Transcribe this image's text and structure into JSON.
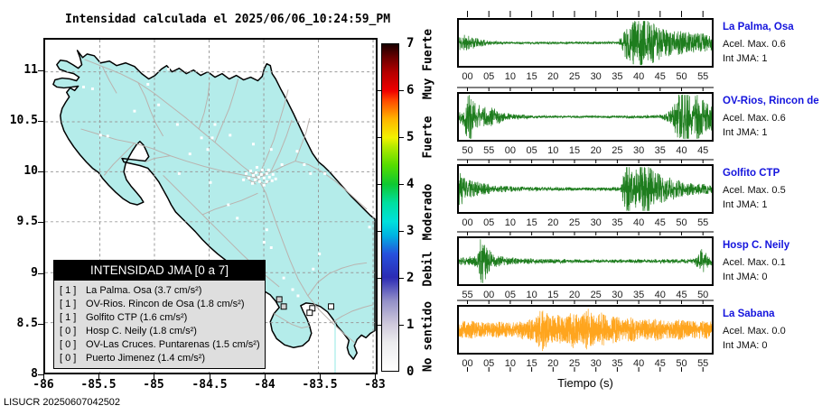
{
  "title": "Intensidad calculada el 2025/06/06_10:24:59_PM",
  "footer": "LISUCR 20250607042502",
  "map": {
    "land_color": "#b4ecea",
    "road_color": "#bab2ae",
    "river_color": "#b6f0ee",
    "x_ticks": [
      "-86",
      "-85.5",
      "-85",
      "-84.5",
      "-84",
      "-83.5",
      "-83"
    ],
    "y_ticks": [
      "8",
      "8.5",
      "9",
      "9.5",
      "10",
      "10.5",
      "11"
    ],
    "legend": {
      "header": "INTENSIDAD JMA [0 a 7]",
      "items": [
        {
          "intensity": "[ 1 ]",
          "label": "La Palma. Osa (3.7 cm/s²)"
        },
        {
          "intensity": "[ 1 ]",
          "label": "OV-Rios. Rincon de Osa (1.8 cm/s²)"
        },
        {
          "intensity": "[ 1 ]",
          "label": "Golfito CTP (1.6 cm/s²)"
        },
        {
          "intensity": "[ 0 ]",
          "label": "Hosp C. Neily (1.8 cm/s²)"
        },
        {
          "intensity": "[ 0 ]",
          "label": "OV-Las Cruces. Puntarenas (1.5 cm/s²)"
        },
        {
          "intensity": "[ 0 ]",
          "label": "Puerto Jimenez (1.4 cm/s²)"
        }
      ]
    }
  },
  "colorbar": {
    "ticks": [
      "0",
      "1",
      "2",
      "3",
      "4",
      "5",
      "6",
      "7"
    ],
    "labels": [
      {
        "text": "No sentido",
        "value": 0.75
      },
      {
        "text": "Debil",
        "value": 2.2
      },
      {
        "text": "Moderado",
        "value": 3.4
      },
      {
        "text": "Fuerte",
        "value": 5.0
      },
      {
        "text": "Muy Fuerte",
        "value": 6.55
      }
    ],
    "gradient": [
      {
        "v": 0,
        "c": "#ffffff"
      },
      {
        "v": 0.6,
        "c": "#ececee"
      },
      {
        "v": 1,
        "c": "#cfc9dc"
      },
      {
        "v": 1.5,
        "c": "#9390c8"
      },
      {
        "v": 2,
        "c": "#2b2bb4"
      },
      {
        "v": 2.5,
        "c": "#2650dc"
      },
      {
        "v": 2.9,
        "c": "#00b2e2"
      },
      {
        "v": 3.2,
        "c": "#00e0dc"
      },
      {
        "v": 3.6,
        "c": "#00dfa0"
      },
      {
        "v": 4,
        "c": "#0ec832"
      },
      {
        "v": 4.4,
        "c": "#55dc00"
      },
      {
        "v": 4.8,
        "c": "#b4ea00"
      },
      {
        "v": 5,
        "c": "#f2f200"
      },
      {
        "v": 5.4,
        "c": "#ffb400"
      },
      {
        "v": 5.8,
        "c": "#ff4600"
      },
      {
        "v": 6,
        "c": "#f00000"
      },
      {
        "v": 6.4,
        "c": "#b40000"
      },
      {
        "v": 6.7,
        "c": "#6e0000"
      },
      {
        "v": 7,
        "c": "#190000"
      }
    ]
  },
  "chart_data": {
    "type": "line",
    "xlabel": "Tiempo (s)",
    "note": "5 acceleration seismograms, 58 s windows",
    "charts": [
      {
        "station": "La Palma, Osa",
        "acel_label": "Acel. Max. 0.6",
        "int_label": "Int JMA: 1",
        "acel_max": 0.6,
        "int_jma": 1,
        "trace_color": "#1e7d1e",
        "seed": 11,
        "max_amp": 21,
        "time_ticks": [
          "00",
          "05",
          "10",
          "15",
          "20",
          "25",
          "30",
          "35",
          "40",
          "45",
          "50",
          "55"
        ],
        "envelope": [
          [
            0,
            0.33
          ],
          [
            0.02,
            0.3
          ],
          [
            0.05,
            0.22
          ],
          [
            0.09,
            0.12
          ],
          [
            0.13,
            0.06
          ],
          [
            0.2,
            0.04
          ],
          [
            0.58,
            0.04
          ],
          [
            0.63,
            0.05
          ],
          [
            0.66,
            0.55
          ],
          [
            0.69,
            0.75
          ],
          [
            0.72,
            1
          ],
          [
            0.75,
            0.8
          ],
          [
            0.78,
            0.62
          ],
          [
            0.82,
            0.5
          ],
          [
            0.86,
            0.42
          ],
          [
            0.92,
            0.36
          ],
          [
            1,
            0.3
          ]
        ]
      },
      {
        "station": "OV-Rios, Rincon de Os",
        "acel_label": "Acel. Max. 0.6",
        "int_label": "Int JMA: 1",
        "acel_max": 0.6,
        "int_jma": 1,
        "trace_color": "#1e7d1e",
        "seed": 22,
        "max_amp": 25,
        "time_ticks": [
          "50",
          "55",
          "00",
          "05",
          "10",
          "15",
          "20",
          "25",
          "30",
          "35",
          "40",
          "45"
        ],
        "envelope": [
          [
            0,
            0.18
          ],
          [
            0.02,
            0.25
          ],
          [
            0.04,
            1
          ],
          [
            0.055,
            0.55
          ],
          [
            0.07,
            0.3
          ],
          [
            0.09,
            0.38
          ],
          [
            0.11,
            0.25
          ],
          [
            0.14,
            0.28
          ],
          [
            0.17,
            0.15
          ],
          [
            0.22,
            0.08
          ],
          [
            0.3,
            0.04
          ],
          [
            0.5,
            0.03
          ],
          [
            0.7,
            0.04
          ],
          [
            0.8,
            0.06
          ],
          [
            0.84,
            0.2
          ],
          [
            0.87,
            0.75
          ],
          [
            0.895,
            1
          ],
          [
            0.92,
            0.5
          ],
          [
            0.945,
            0.7
          ],
          [
            0.97,
            0.45
          ],
          [
            1,
            0.4
          ]
        ]
      },
      {
        "station": "Golfito CTP",
        "acel_label": "Acel. Max. 0.5",
        "int_label": "Int JMA: 1",
        "acel_max": 0.5,
        "int_jma": 1,
        "trace_color": "#1e7d1e",
        "seed": 33,
        "max_amp": 23,
        "time_ticks": [
          "00",
          "05",
          "10",
          "15",
          "20",
          "25",
          "30",
          "35",
          "40",
          "45",
          "50",
          "55"
        ],
        "envelope": [
          [
            0,
            0.5
          ],
          [
            0.015,
            0.65
          ],
          [
            0.03,
            0.3
          ],
          [
            0.06,
            0.25
          ],
          [
            0.1,
            0.18
          ],
          [
            0.15,
            0.12
          ],
          [
            0.22,
            0.08
          ],
          [
            0.35,
            0.06
          ],
          [
            0.55,
            0.05
          ],
          [
            0.64,
            0.06
          ],
          [
            0.665,
            1
          ],
          [
            0.69,
            0.5
          ],
          [
            0.715,
            0.75
          ],
          [
            0.74,
            0.9
          ],
          [
            0.77,
            0.55
          ],
          [
            0.8,
            0.45
          ],
          [
            0.84,
            0.35
          ],
          [
            0.88,
            0.25
          ],
          [
            0.93,
            0.18
          ],
          [
            1,
            0.15
          ]
        ]
      },
      {
        "station": "Hosp C. Neily",
        "acel_label": "Acel. Max. 0.1",
        "int_label": "Int JMA: 0",
        "acel_max": 0.1,
        "int_jma": 0,
        "trace_color": "#1e7d1e",
        "seed": 44,
        "max_amp": 25,
        "time_ticks": [
          "55",
          "00",
          "05",
          "10",
          "15",
          "20",
          "25",
          "30",
          "35",
          "40",
          "45",
          "50"
        ],
        "envelope": [
          [
            0,
            0.1
          ],
          [
            0.04,
            0.12
          ],
          [
            0.07,
            0.18
          ],
          [
            0.095,
            1
          ],
          [
            0.11,
            0.45
          ],
          [
            0.13,
            0.25
          ],
          [
            0.16,
            0.15
          ],
          [
            0.2,
            0.1
          ],
          [
            0.3,
            0.07
          ],
          [
            0.5,
            0.05
          ],
          [
            0.7,
            0.05
          ],
          [
            0.85,
            0.06
          ],
          [
            0.93,
            0.07
          ],
          [
            0.965,
            0.4
          ],
          [
            0.98,
            0.2
          ],
          [
            1,
            0.12
          ]
        ]
      },
      {
        "station": "La Sabana",
        "acel_label": "Acel. Max. 0.0",
        "int_label": "Int JMA: 0",
        "acel_max": 0.0,
        "int_jma": 0,
        "trace_color": "#ffa51e",
        "seed": 55,
        "max_amp": 17,
        "time_ticks": [
          "00",
          "05",
          "10",
          "15",
          "20",
          "25",
          "30",
          "35",
          "40",
          "45",
          "50",
          "55"
        ],
        "envelope": [
          [
            0,
            0.35
          ],
          [
            0.04,
            0.4
          ],
          [
            0.08,
            0.35
          ],
          [
            0.12,
            0.3
          ],
          [
            0.16,
            0.35
          ],
          [
            0.2,
            0.3
          ],
          [
            0.25,
            0.4
          ],
          [
            0.3,
            0.5
          ],
          [
            0.335,
            1
          ],
          [
            0.36,
            0.55
          ],
          [
            0.39,
            0.65
          ],
          [
            0.42,
            0.5
          ],
          [
            0.45,
            0.8
          ],
          [
            0.48,
            0.55
          ],
          [
            0.51,
            0.9
          ],
          [
            0.54,
            0.55
          ],
          [
            0.565,
            0.75
          ],
          [
            0.59,
            0.5
          ],
          [
            0.62,
            0.65
          ],
          [
            0.65,
            0.45
          ],
          [
            0.68,
            0.55
          ],
          [
            0.72,
            0.4
          ],
          [
            0.76,
            0.5
          ],
          [
            0.8,
            0.45
          ],
          [
            0.84,
            0.35
          ],
          [
            0.88,
            0.45
          ],
          [
            0.92,
            0.35
          ],
          [
            0.96,
            0.4
          ],
          [
            1,
            0.38
          ]
        ]
      }
    ]
  }
}
